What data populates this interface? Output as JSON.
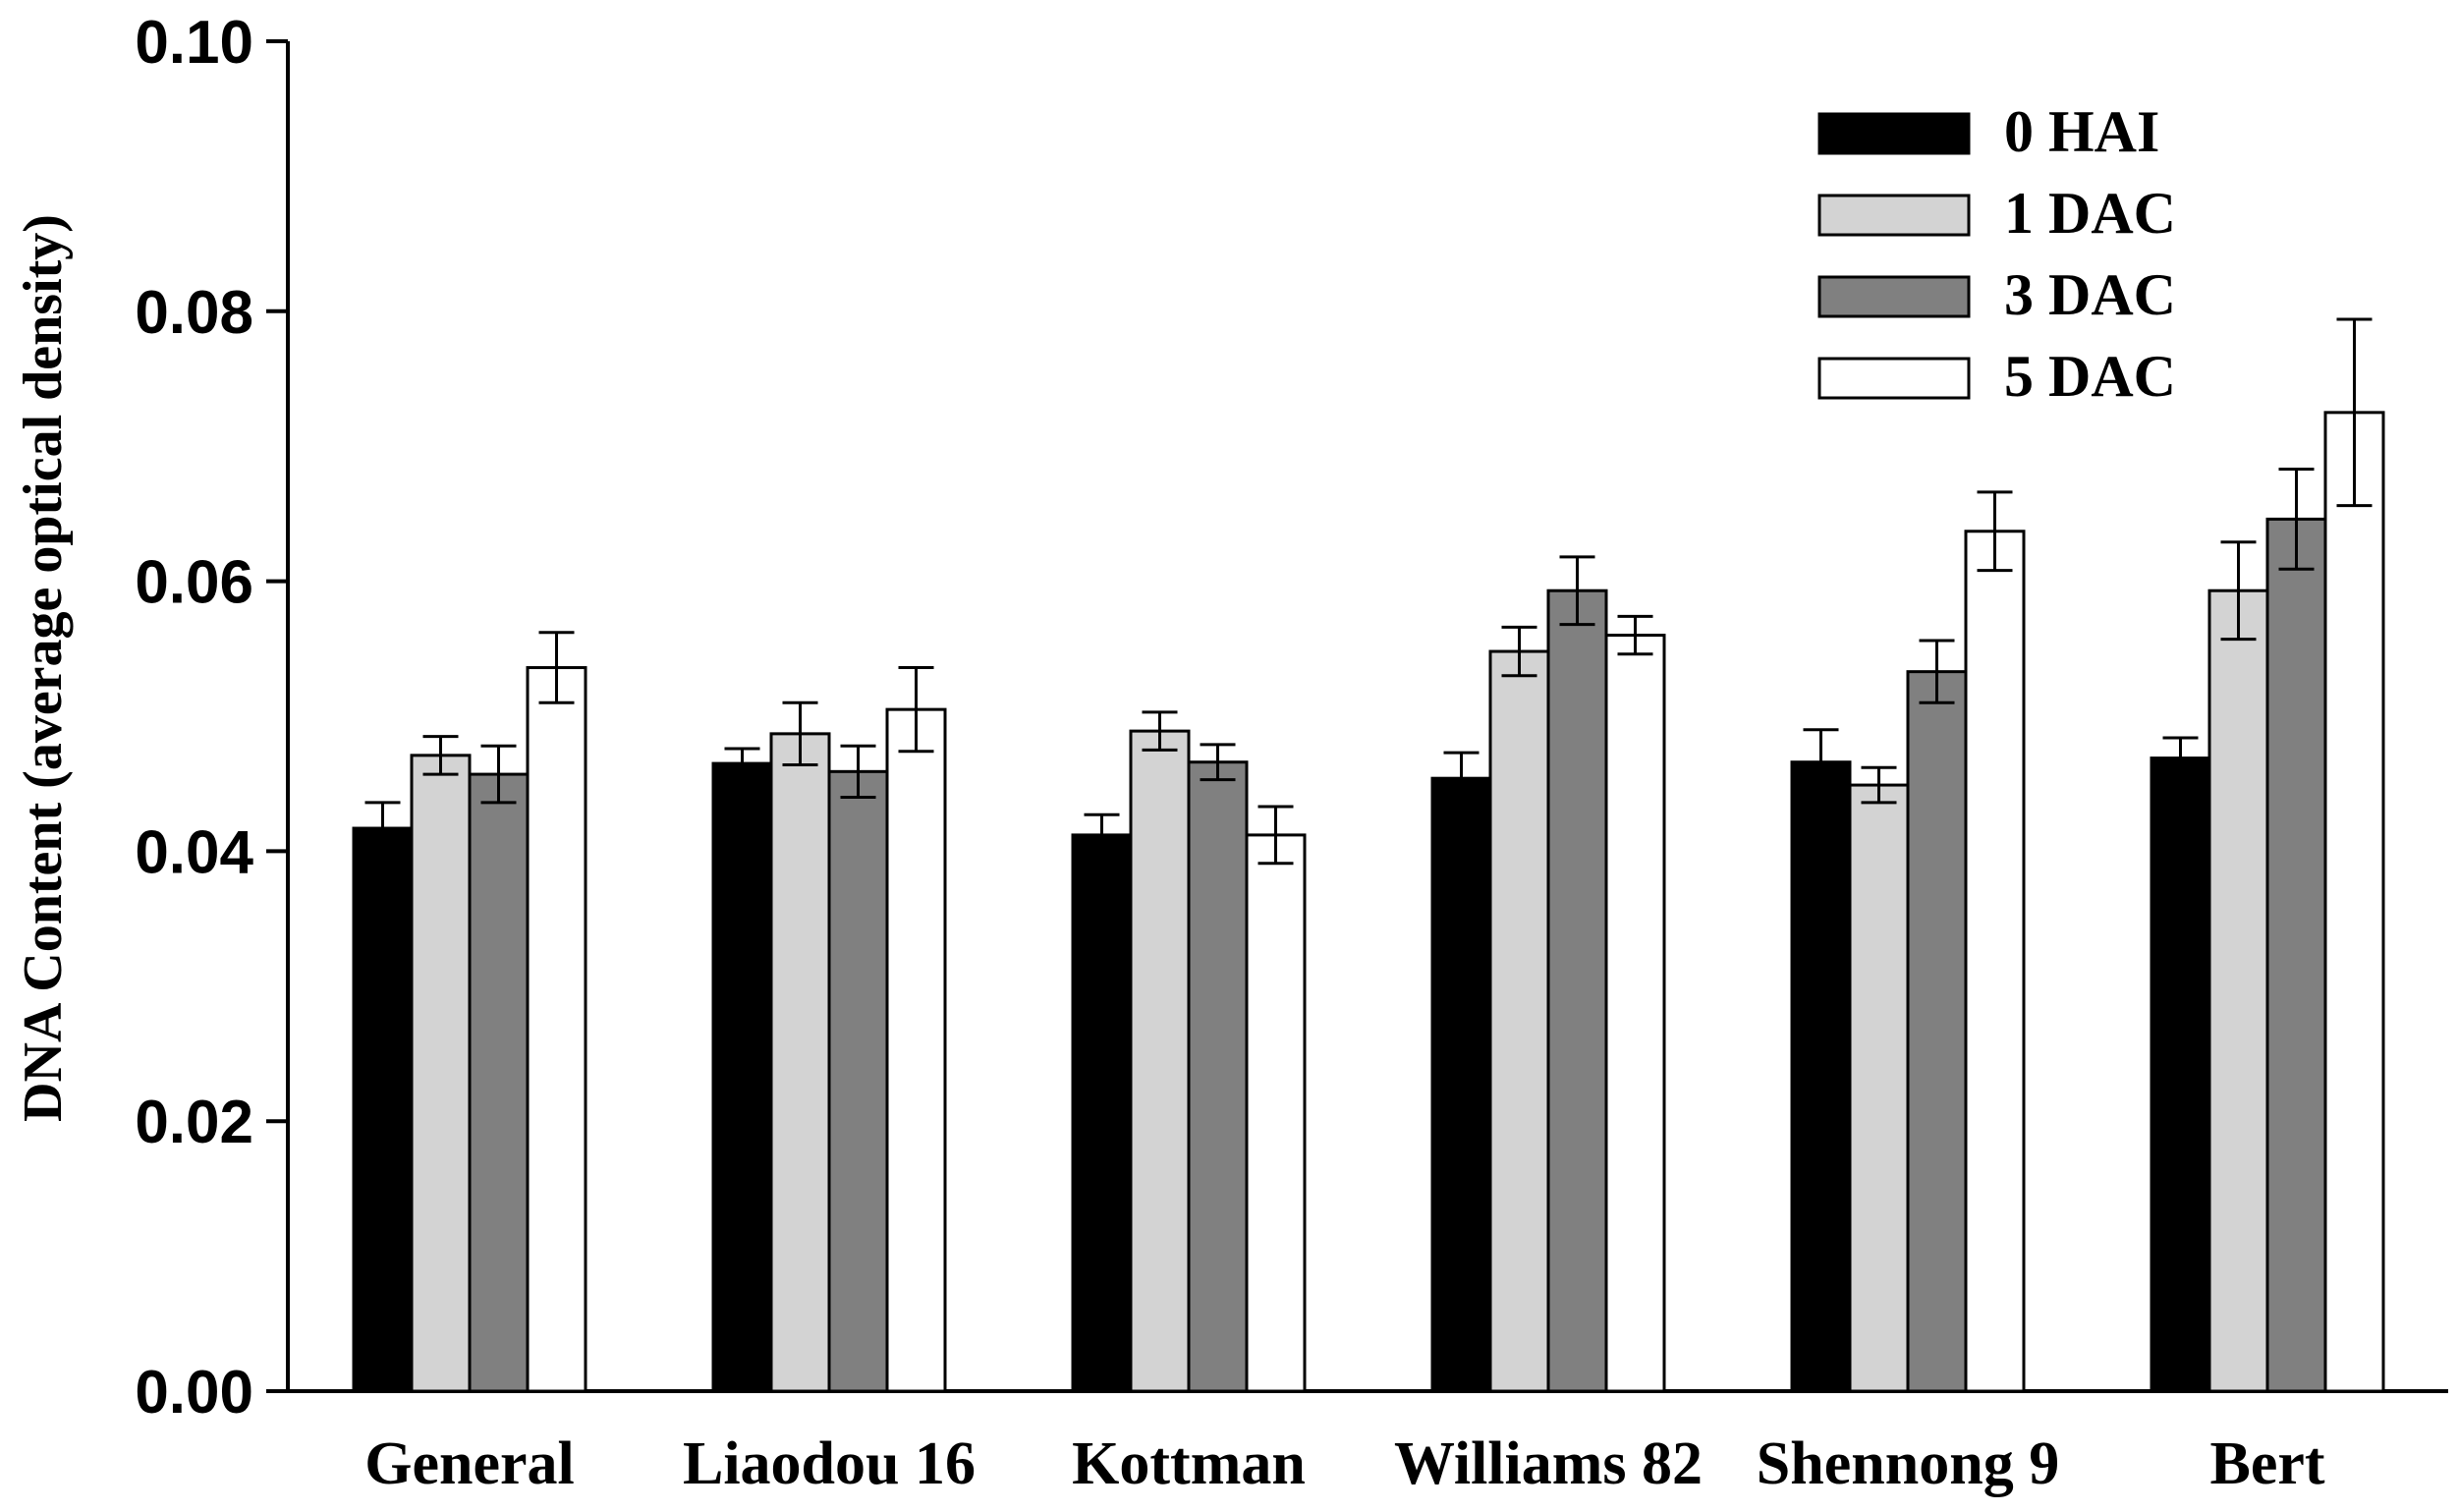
{
  "chart_data": {
    "type": "bar",
    "title": "",
    "xlabel": "",
    "ylabel": "DNA Content (average optical density)",
    "ylim": [
      0,
      0.1
    ],
    "yticks": [
      "0.00",
      "0.02",
      "0.04",
      "0.06",
      "0.08",
      "0.10"
    ],
    "categories": [
      "General",
      "Liaodou 16",
      "Kottman",
      "Williams 82",
      "Shennong 9",
      "Bert"
    ],
    "legend_position": "top-right",
    "series": [
      {
        "name": "0 HAI",
        "color": "#000000",
        "values": [
          0.0417,
          0.0465,
          0.0412,
          0.0454,
          0.0466,
          0.0469
        ],
        "errors": [
          0.0019,
          0.0011,
          0.0015,
          0.0019,
          0.0024,
          0.0015
        ]
      },
      {
        "name": "1 DAC",
        "color": "#d3d3d3",
        "values": [
          0.0471,
          0.0487,
          0.0489,
          0.0548,
          0.0449,
          0.0593
        ],
        "errors": [
          0.0014,
          0.0023,
          0.0014,
          0.0018,
          0.0013,
          0.0036
        ]
      },
      {
        "name": "3 DAC",
        "color": "#808080",
        "values": [
          0.0457,
          0.0459,
          0.0466,
          0.0593,
          0.0533,
          0.0646
        ],
        "errors": [
          0.0021,
          0.0019,
          0.0013,
          0.0025,
          0.0023,
          0.0037
        ]
      },
      {
        "name": "5 DAC",
        "color": "#ffffff",
        "values": [
          0.0536,
          0.0505,
          0.0412,
          0.056,
          0.0637,
          0.0725
        ],
        "errors": [
          0.0026,
          0.0031,
          0.0021,
          0.0014,
          0.0029,
          0.0069
        ]
      }
    ]
  }
}
